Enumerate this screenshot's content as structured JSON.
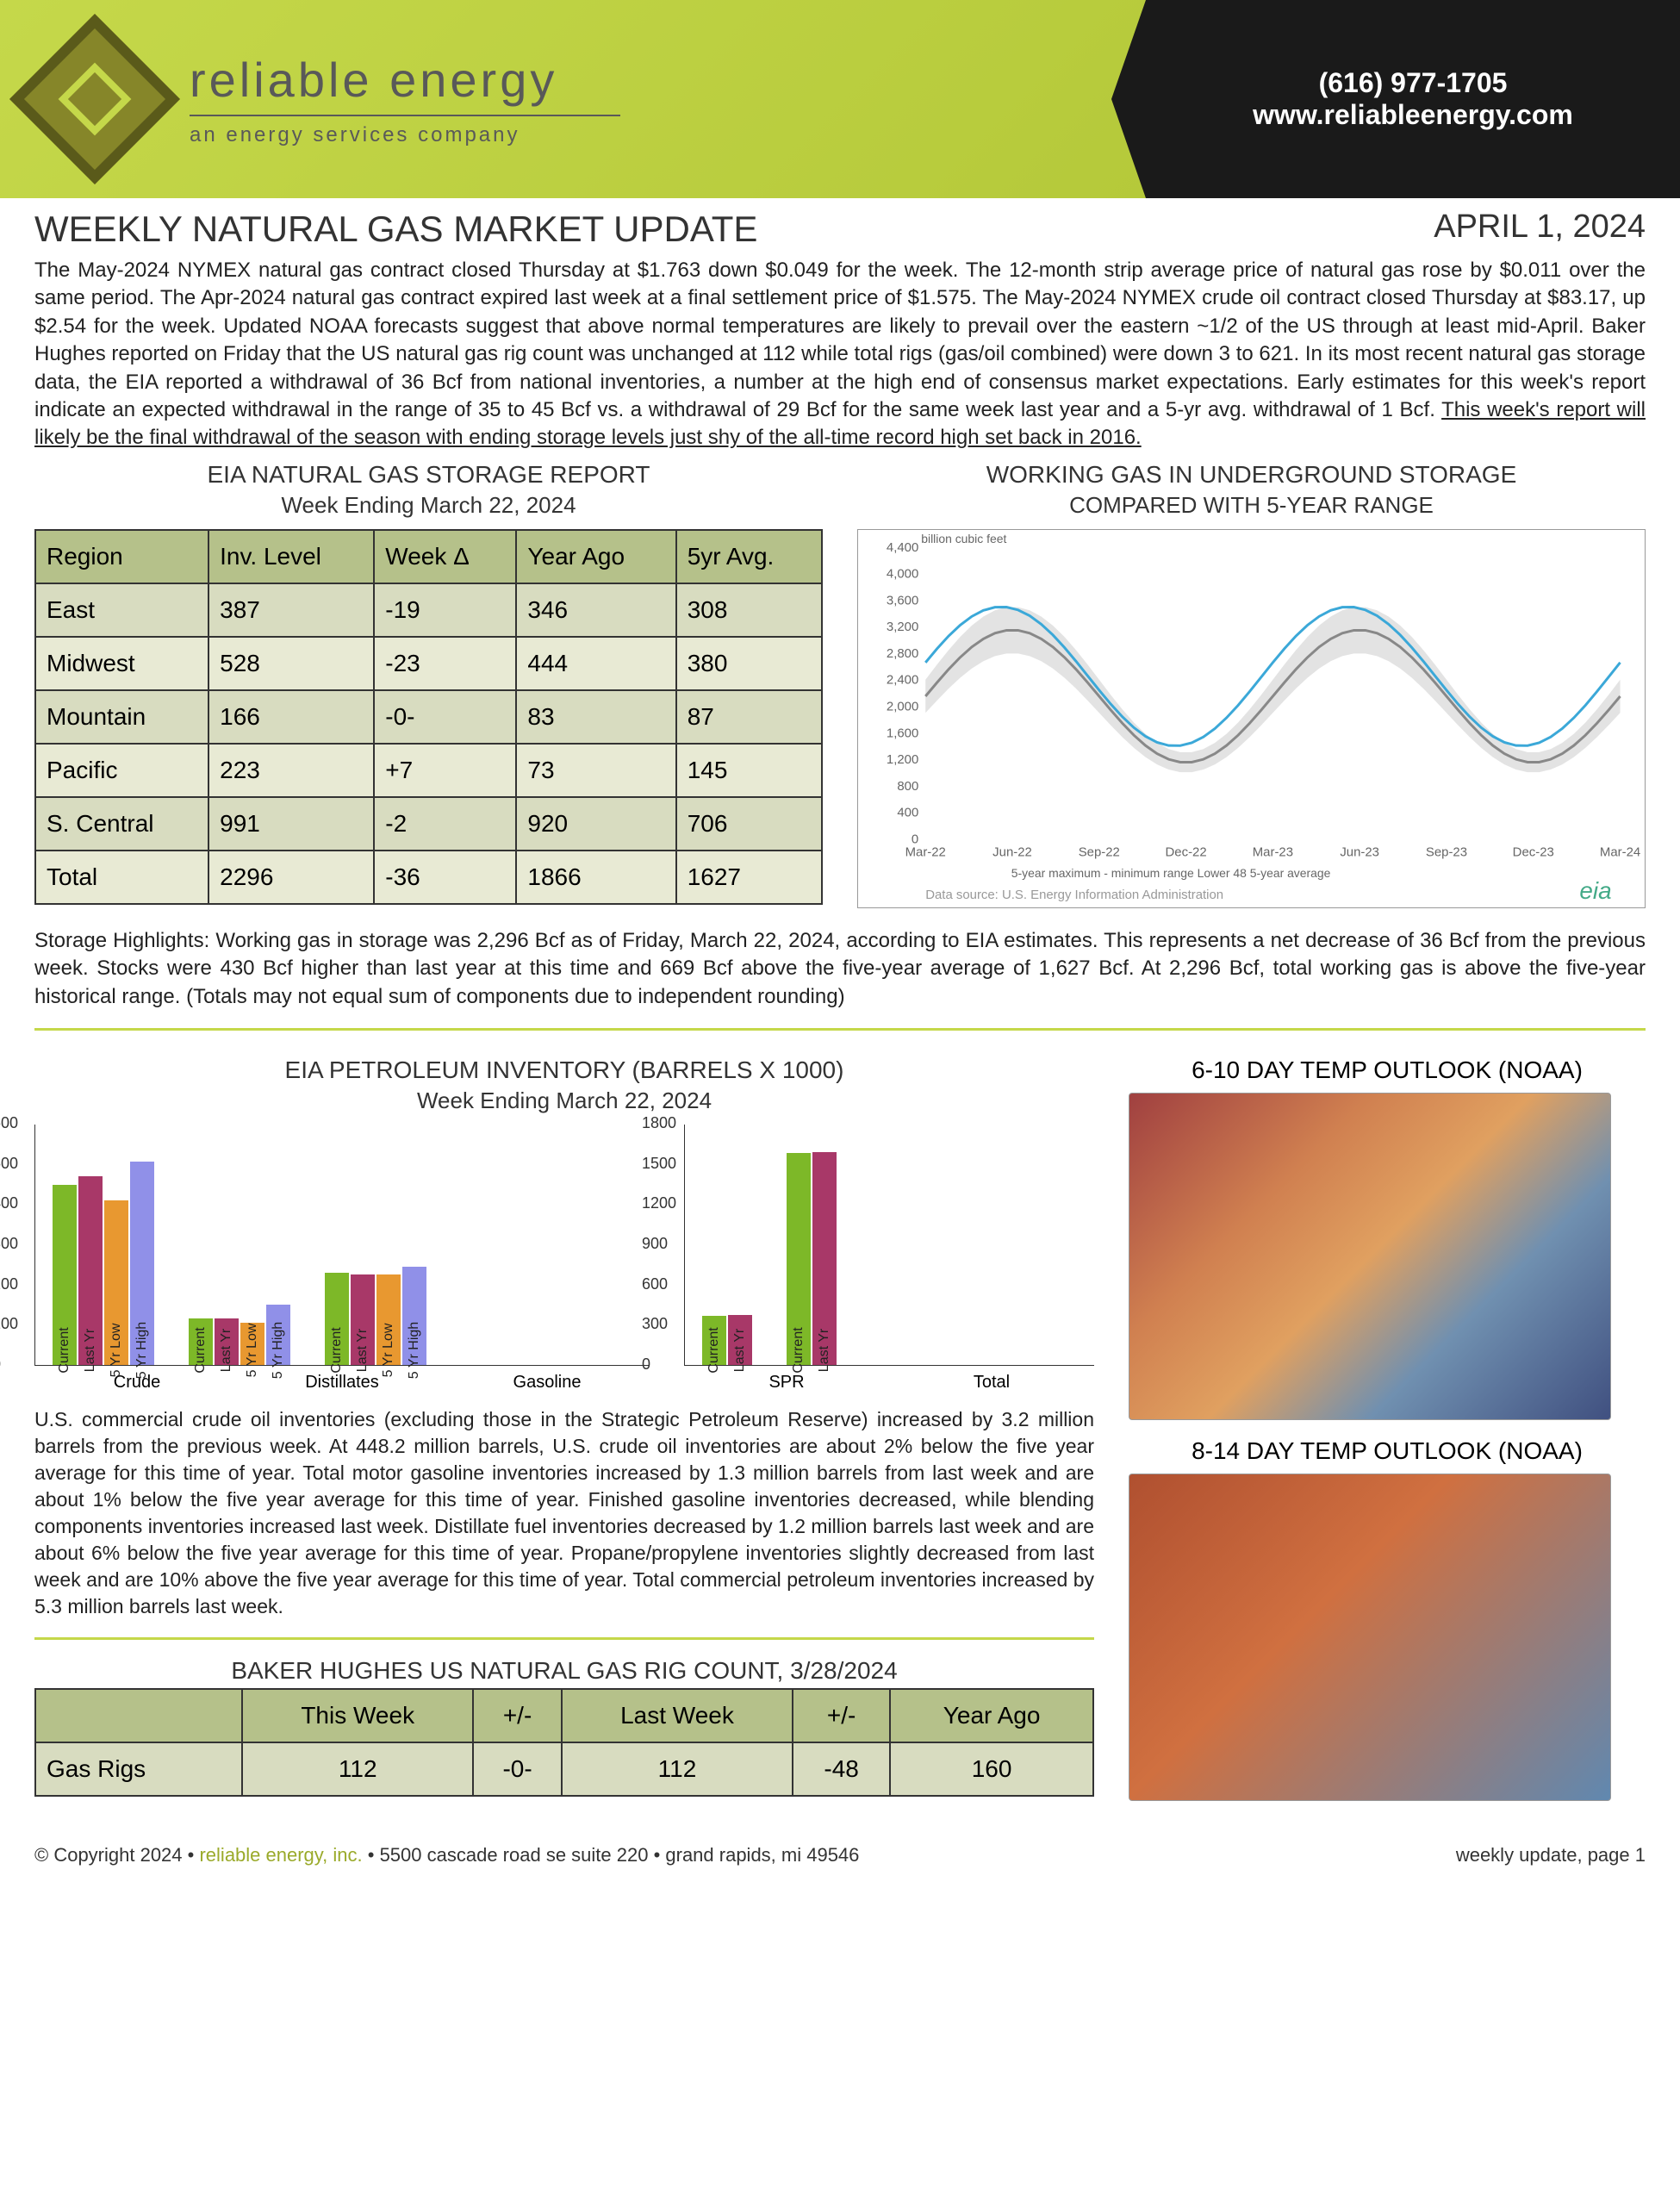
{
  "header": {
    "brand": "reliable energy",
    "tagline": "an energy services company",
    "phone": "(616) 977-1705",
    "website": "www.reliableenergy.com"
  },
  "title": "WEEKLY NATURAL GAS MARKET UPDATE",
  "date": "APRIL 1, 2024",
  "summary": "The May-2024 NYMEX natural gas contract closed Thursday at $1.763 down $0.049 for the week. The 12-month strip average price of natural gas rose by $0.011 over the same period. The Apr-2024 natural gas contract expired last week at a final settlement price of $1.575. The May-2024 NYMEX crude oil contract closed Thursday at $83.17, up $2.54 for the week. Updated NOAA forecasts suggest that above normal temperatures are likely to prevail over the eastern ~1/2 of the US through at least mid-April. Baker Hughes reported on Friday that the US natural gas rig count was unchanged at 112 while total rigs (gas/oil combined) were down 3 to 621. In its most recent natural gas storage data, the EIA reported a withdrawal of 36 Bcf from national inventories, a number at the high end of consensus market expectations. Early estimates for this week's report indicate an expected withdrawal in the range of 35 to 45 Bcf vs. a withdrawal of 29 Bcf for the same week last year and a 5-yr avg. withdrawal of 1 Bcf.",
  "summary_underline": "This week's report will likely be the final withdrawal of the season with ending storage levels just shy of the all-time record high set back in 2016.",
  "storage_report": {
    "title": "EIA NATURAL GAS STORAGE REPORT",
    "subtitle": "Week Ending March 22, 2024",
    "columns": [
      "Region",
      "Inv. Level",
      "Week Δ",
      "Year Ago",
      "5yr Avg."
    ],
    "rows": [
      [
        "East",
        "387",
        "-19",
        "346",
        "308"
      ],
      [
        "Midwest",
        "528",
        "-23",
        "444",
        "380"
      ],
      [
        "Mountain",
        "166",
        "-0-",
        "83",
        "87"
      ],
      [
        "Pacific",
        "223",
        "+7",
        "73",
        "145"
      ],
      [
        "S. Central",
        "991",
        "-2",
        "920",
        "706"
      ],
      [
        "Total",
        "2296",
        "-36",
        "1866",
        "1627"
      ]
    ]
  },
  "storage_chart": {
    "title": "WORKING GAS IN UNDERGROUND STORAGE",
    "subtitle": "COMPARED WITH 5-YEAR RANGE",
    "y_label": "billion cubic feet",
    "y_max": 4400,
    "y_step": 400,
    "x_labels": [
      "Mar-22",
      "Jun-22",
      "Sep-22",
      "Dec-22",
      "Mar-23",
      "Jun-23",
      "Sep-23",
      "Dec-23",
      "Mar-24"
    ],
    "legend": [
      "5-year maximum - minimum range",
      "Lower 48",
      "5-year average"
    ],
    "source": "Data source:  U.S. Energy Information Administration",
    "line_color": "#3ba8d8",
    "avg_color": "#888888",
    "range_color": "#d0d0d0"
  },
  "storage_highlights": "Storage Highlights: Working gas in storage was 2,296 Bcf as of Friday, March 22, 2024, according to EIA estimates. This represents a net decrease of 36 Bcf from the previous week. Stocks were 430 Bcf higher than last year at this time and 669 Bcf above the five-year average of 1,627 Bcf. At 2,296 Bcf, total working gas is above the five-year historical range. (Totals may not equal sum of components due to independent rounding)",
  "petroleum": {
    "title": "EIA PETROLEUM INVENTORY (BARRELS X 1000)",
    "subtitle": "Week Ending March 22, 2024",
    "left_ymax": 600,
    "right_ymax": 1800,
    "series_labels": [
      "Current",
      "Last Yr",
      "5 Yr Low",
      "5 Yr High"
    ],
    "series_colors": [
      "#7db828",
      "#a83868",
      "#e89830",
      "#9090e8"
    ],
    "groups_left": [
      {
        "name": "Crude",
        "values": [
          448,
          470,
          410,
          505
        ]
      },
      {
        "name": "Distillates",
        "values": [
          115,
          115,
          105,
          150
        ]
      },
      {
        "name": "Gasoline",
        "values": [
          230,
          225,
          225,
          245
        ]
      }
    ],
    "groups_right": [
      {
        "name": "SPR",
        "values": [
          365,
          370
        ]
      },
      {
        "name": "Total",
        "values": [
          1580,
          1590
        ]
      }
    ],
    "text": "U.S. commercial crude oil inventories (excluding those in the Strategic Petroleum Reserve) increased by 3.2 million barrels from the previous week. At 448.2 million barrels, U.S. crude oil inventories are about 2% below the five year average for this time of year. Total motor gasoline inventories increased by 1.3 million barrels from last week and are about 1% below the five year average for this time of year. Finished gasoline inventories decreased, while blending components inventories increased last week. Distillate fuel inventories decreased by 1.2 million barrels last week and are about 6% below the five year average for this time of year. Propane/propylene inventories slightly decreased from last week and are 10% above the five year average for this time of year. Total commercial petroleum inventories increased by 5.3 million barrels last week."
  },
  "temp_outlook": {
    "title1": "6-10 DAY TEMP OUTLOOK (NOAA)",
    "title2": "8-14 DAY TEMP OUTLOOK (NOAA)"
  },
  "rig_count": {
    "title": "BAKER HUGHES US NATURAL GAS RIG COUNT, 3/28/2024",
    "columns": [
      "",
      "This Week",
      "+/-",
      "Last Week",
      "+/-",
      "Year Ago"
    ],
    "rows": [
      [
        "Gas Rigs",
        "112",
        "-0-",
        "112",
        "-48",
        "160"
      ]
    ]
  },
  "footer": {
    "copyright": "© Copyright 2024  •",
    "company": "reliable energy, inc.",
    "address": "  •  5500 cascade road se  suite 220  •  grand rapids, mi  49546",
    "page": "weekly update, page 1"
  }
}
